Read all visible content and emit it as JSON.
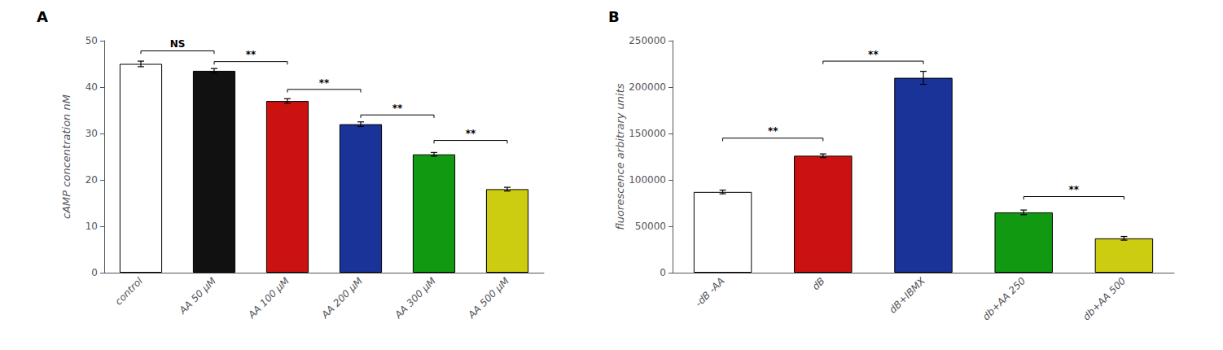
{
  "chart_data": [
    {
      "type": "bar",
      "title": "A",
      "categories": [
        "control",
        "AA 50 μM",
        "AA 100 μM",
        "AA 200 μM",
        "AA 300 μM",
        "AA 500 μM"
      ],
      "values": [
        45.0,
        43.5,
        37.0,
        32.0,
        25.5,
        18.0
      ],
      "errors": [
        0.6,
        0.5,
        0.5,
        0.5,
        0.4,
        0.4
      ],
      "colors": [
        "white",
        "#111111",
        "#cc1111",
        "#1a3399",
        "#119911",
        "#cccc11"
      ],
      "ylabel": "cAMP concentration nM",
      "ylim": [
        0,
        50
      ],
      "yticks": [
        0,
        10,
        20,
        30,
        40,
        50
      ],
      "grid": false,
      "annotations": [
        {
          "from": "control",
          "to": "AA 50 μM",
          "y": 47.8,
          "text": "NS"
        },
        {
          "from": "AA 50 μM",
          "to": "AA 100 μM",
          "y": 45.5,
          "text": "**"
        },
        {
          "from": "AA 100 μM",
          "to": "AA 200 μM",
          "y": 39.5,
          "text": "**"
        },
        {
          "from": "AA 200 μM",
          "to": "AA 300 μM",
          "y": 34.0,
          "text": "**"
        },
        {
          "from": "AA 300 μM",
          "to": "AA 500 μM",
          "y": 28.5,
          "text": "**"
        }
      ]
    },
    {
      "type": "bar",
      "title": "B",
      "categories": [
        "-dB -AA",
        "dB",
        "dB+IBMX",
        "db+AA 250",
        "db+AA 500"
      ],
      "values": [
        87000,
        126000,
        210000,
        65000,
        37000
      ],
      "errors": [
        2000,
        2000,
        7000,
        2500,
        2000
      ],
      "colors": [
        "white",
        "#cc1111",
        "#1a3399",
        "#119911",
        "#cccc11"
      ],
      "ylabel": "fluorescence arbitrary units",
      "ylim": [
        0,
        250000
      ],
      "yticks": [
        0,
        50000,
        100000,
        150000,
        200000,
        250000
      ],
      "grid": false,
      "annotations": [
        {
          "from": "-dB -AA",
          "to": "dB",
          "y": 145000,
          "text": "**"
        },
        {
          "from": "dB",
          "to": "dB+IBMX",
          "y": 228000,
          "text": "**"
        },
        {
          "from": "db+AA 250",
          "to": "db+AA 500",
          "y": 82000,
          "text": "**"
        }
      ]
    }
  ]
}
